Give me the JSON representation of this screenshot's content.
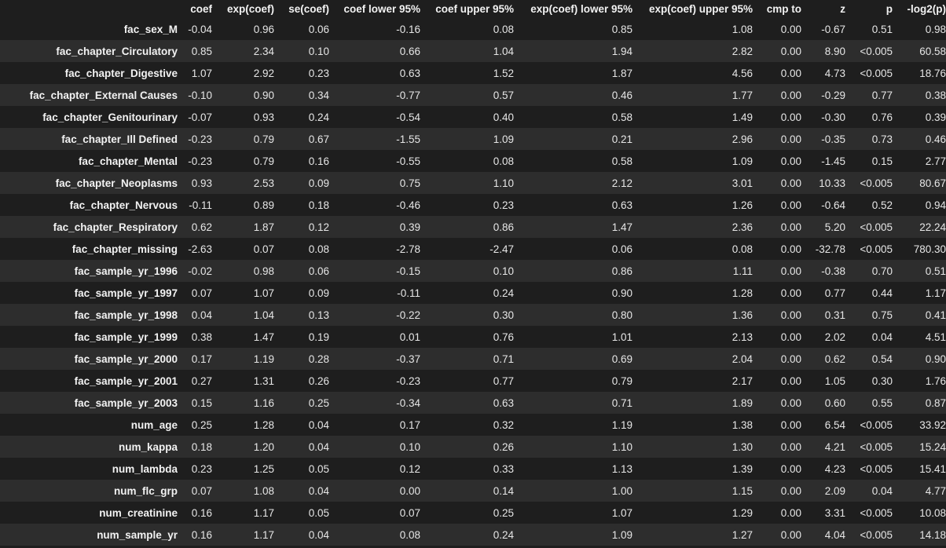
{
  "table": {
    "columns": [
      "coef",
      "exp(coef)",
      "se(coef)",
      "coef lower 95%",
      "coef upper 95%",
      "exp(coef) lower 95%",
      "exp(coef) upper 95%",
      "cmp to",
      "z",
      "p",
      "-log2(p)"
    ],
    "rows": [
      {
        "name": "fac_sex_M",
        "values": [
          "-0.04",
          "0.96",
          "0.06",
          "-0.16",
          "0.08",
          "0.85",
          "1.08",
          "0.00",
          "-0.67",
          "0.51",
          "0.98"
        ]
      },
      {
        "name": "fac_chapter_Circulatory",
        "values": [
          "0.85",
          "2.34",
          "0.10",
          "0.66",
          "1.04",
          "1.94",
          "2.82",
          "0.00",
          "8.90",
          "<0.005",
          "60.58"
        ]
      },
      {
        "name": "fac_chapter_Digestive",
        "values": [
          "1.07",
          "2.92",
          "0.23",
          "0.63",
          "1.52",
          "1.87",
          "4.56",
          "0.00",
          "4.73",
          "<0.005",
          "18.76"
        ]
      },
      {
        "name": "fac_chapter_External Causes",
        "values": [
          "-0.10",
          "0.90",
          "0.34",
          "-0.77",
          "0.57",
          "0.46",
          "1.77",
          "0.00",
          "-0.29",
          "0.77",
          "0.38"
        ]
      },
      {
        "name": "fac_chapter_Genitourinary",
        "values": [
          "-0.07",
          "0.93",
          "0.24",
          "-0.54",
          "0.40",
          "0.58",
          "1.49",
          "0.00",
          "-0.30",
          "0.76",
          "0.39"
        ]
      },
      {
        "name": "fac_chapter_Ill Defined",
        "values": [
          "-0.23",
          "0.79",
          "0.67",
          "-1.55",
          "1.09",
          "0.21",
          "2.96",
          "0.00",
          "-0.35",
          "0.73",
          "0.46"
        ]
      },
      {
        "name": "fac_chapter_Mental",
        "values": [
          "-0.23",
          "0.79",
          "0.16",
          "-0.55",
          "0.08",
          "0.58",
          "1.09",
          "0.00",
          "-1.45",
          "0.15",
          "2.77"
        ]
      },
      {
        "name": "fac_chapter_Neoplasms",
        "values": [
          "0.93",
          "2.53",
          "0.09",
          "0.75",
          "1.10",
          "2.12",
          "3.01",
          "0.00",
          "10.33",
          "<0.005",
          "80.67"
        ]
      },
      {
        "name": "fac_chapter_Nervous",
        "values": [
          "-0.11",
          "0.89",
          "0.18",
          "-0.46",
          "0.23",
          "0.63",
          "1.26",
          "0.00",
          "-0.64",
          "0.52",
          "0.94"
        ]
      },
      {
        "name": "fac_chapter_Respiratory",
        "values": [
          "0.62",
          "1.87",
          "0.12",
          "0.39",
          "0.86",
          "1.47",
          "2.36",
          "0.00",
          "5.20",
          "<0.005",
          "22.24"
        ]
      },
      {
        "name": "fac_chapter_missing",
        "values": [
          "-2.63",
          "0.07",
          "0.08",
          "-2.78",
          "-2.47",
          "0.06",
          "0.08",
          "0.00",
          "-32.78",
          "<0.005",
          "780.30"
        ]
      },
      {
        "name": "fac_sample_yr_1996",
        "values": [
          "-0.02",
          "0.98",
          "0.06",
          "-0.15",
          "0.10",
          "0.86",
          "1.11",
          "0.00",
          "-0.38",
          "0.70",
          "0.51"
        ]
      },
      {
        "name": "fac_sample_yr_1997",
        "values": [
          "0.07",
          "1.07",
          "0.09",
          "-0.11",
          "0.24",
          "0.90",
          "1.28",
          "0.00",
          "0.77",
          "0.44",
          "1.17"
        ]
      },
      {
        "name": "fac_sample_yr_1998",
        "values": [
          "0.04",
          "1.04",
          "0.13",
          "-0.22",
          "0.30",
          "0.80",
          "1.36",
          "0.00",
          "0.31",
          "0.75",
          "0.41"
        ]
      },
      {
        "name": "fac_sample_yr_1999",
        "values": [
          "0.38",
          "1.47",
          "0.19",
          "0.01",
          "0.76",
          "1.01",
          "2.13",
          "0.00",
          "2.02",
          "0.04",
          "4.51"
        ]
      },
      {
        "name": "fac_sample_yr_2000",
        "values": [
          "0.17",
          "1.19",
          "0.28",
          "-0.37",
          "0.71",
          "0.69",
          "2.04",
          "0.00",
          "0.62",
          "0.54",
          "0.90"
        ]
      },
      {
        "name": "fac_sample_yr_2001",
        "values": [
          "0.27",
          "1.31",
          "0.26",
          "-0.23",
          "0.77",
          "0.79",
          "2.17",
          "0.00",
          "1.05",
          "0.30",
          "1.76"
        ]
      },
      {
        "name": "fac_sample_yr_2003",
        "values": [
          "0.15",
          "1.16",
          "0.25",
          "-0.34",
          "0.63",
          "0.71",
          "1.89",
          "0.00",
          "0.60",
          "0.55",
          "0.87"
        ]
      },
      {
        "name": "num_age",
        "values": [
          "0.25",
          "1.28",
          "0.04",
          "0.17",
          "0.32",
          "1.19",
          "1.38",
          "0.00",
          "6.54",
          "<0.005",
          "33.92"
        ]
      },
      {
        "name": "num_kappa",
        "values": [
          "0.18",
          "1.20",
          "0.04",
          "0.10",
          "0.26",
          "1.10",
          "1.30",
          "0.00",
          "4.21",
          "<0.005",
          "15.24"
        ]
      },
      {
        "name": "num_lambda",
        "values": [
          "0.23",
          "1.25",
          "0.05",
          "0.12",
          "0.33",
          "1.13",
          "1.39",
          "0.00",
          "4.23",
          "<0.005",
          "15.41"
        ]
      },
      {
        "name": "num_flc_grp",
        "values": [
          "0.07",
          "1.08",
          "0.04",
          "0.00",
          "0.14",
          "1.00",
          "1.15",
          "0.00",
          "2.09",
          "0.04",
          "4.77"
        ]
      },
      {
        "name": "num_creatinine",
        "values": [
          "0.16",
          "1.17",
          "0.05",
          "0.07",
          "0.25",
          "1.07",
          "1.29",
          "0.00",
          "3.31",
          "<0.005",
          "10.08"
        ]
      },
      {
        "name": "num_sample_yr",
        "values": [
          "0.16",
          "1.17",
          "0.04",
          "0.08",
          "0.24",
          "1.09",
          "1.27",
          "0.00",
          "4.04",
          "<0.005",
          "14.18"
        ]
      }
    ]
  }
}
